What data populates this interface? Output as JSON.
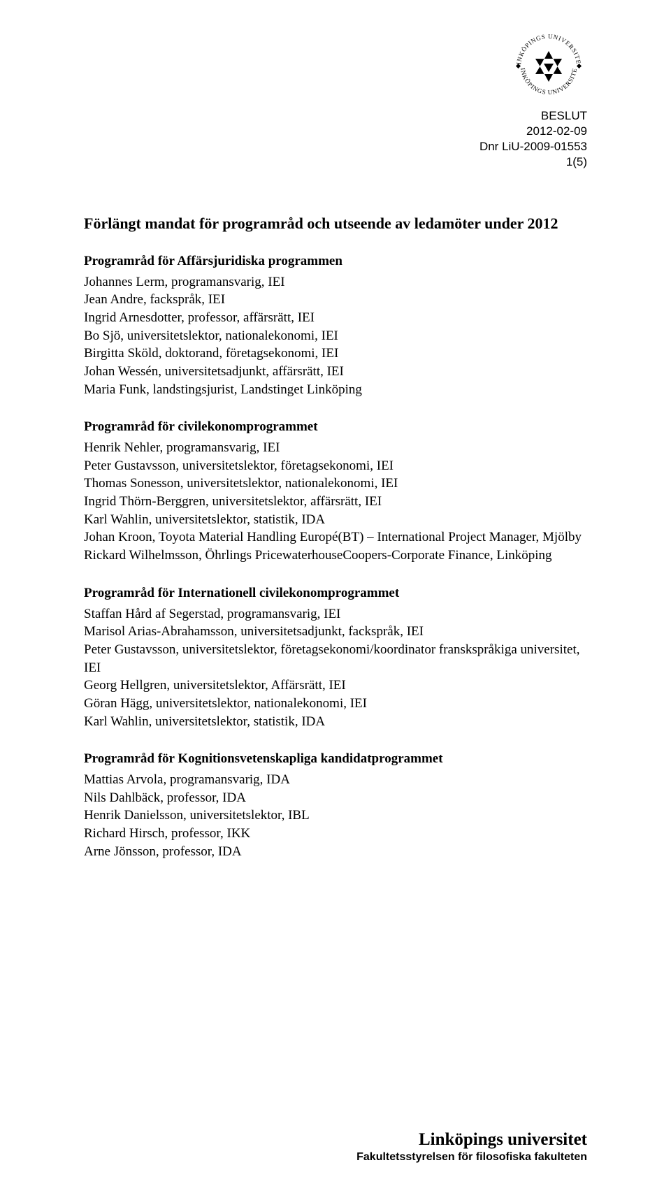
{
  "header": {
    "line1": "BESLUT",
    "line2": "2012-02-09",
    "line3": "Dnr LiU-2009-01553",
    "line4": "1(5)"
  },
  "doc_title": "Förlängt mandat för programråd och utseende av ledamöter under 2012",
  "sections": [
    {
      "title": "Programråd för Affärsjuridiska programmen",
      "members": [
        "Johannes Lerm, programansvarig, IEI",
        "Jean Andre, fackspråk, IEI",
        "Ingrid Arnesdotter, professor, affärsrätt, IEI",
        "Bo Sjö, universitetslektor, nationalekonomi, IEI",
        "Birgitta Sköld, doktorand, företagsekonomi, IEI",
        "Johan Wessén, universitetsadjunkt, affärsrätt, IEI",
        "Maria Funk, landstingsjurist, Landstinget Linköping"
      ]
    },
    {
      "title": "Programråd för civilekonomprogrammet",
      "members": [
        "Henrik Nehler, programansvarig, IEI",
        "Peter Gustavsson, universitetslektor, företagsekonomi, IEI",
        "Thomas Sonesson, universitetslektor, nationalekonomi, IEI",
        "Ingrid Thörn-Berggren, universitetslektor, affärsrätt, IEI",
        "Karl Wahlin, universitetslektor, statistik, IDA",
        "Johan Kroon, Toyota Material Handling Europé(BT) – International Project Manager, Mjölby",
        "Rickard Wilhelmsson, Öhrlings PricewaterhouseCoopers-Corporate Finance, Linköping"
      ]
    },
    {
      "title": "Programråd för Internationell civilekonomprogrammet",
      "members": [
        "Staffan Hård af Segerstad, programansvarig, IEI",
        "Marisol Arias-Abrahamsson, universitetsadjunkt, fackspråk, IEI",
        "Peter Gustavsson, universitetslektor, företagsekonomi/koordinator franskspråkiga universitet, IEI",
        "Georg Hellgren, universitetslektor, Affärsrätt, IEI",
        "Göran Hägg, universitetslektor, nationalekonomi, IEI",
        "Karl Wahlin, universitetslektor, statistik, IDA"
      ]
    },
    {
      "title": "Programråd för Kognitionsvetenskapliga kandidatprogrammet",
      "members": [
        "Mattias Arvola, programansvarig, IDA",
        "Nils Dahlbäck, professor, IDA",
        "Henrik Danielsson, universitetslektor, IBL",
        "Richard Hirsch, professor, IKK",
        "Arne Jönsson, professor, IDA"
      ]
    }
  ],
  "logo": {
    "text_top": "LINKÖPINGS UNIVERSITET",
    "text_bottom": "LINKÖPINGS UNIVERSITET",
    "color": "#000000"
  },
  "footer": {
    "university": "Linköpings universitet",
    "faculty": "Fakultetsstyrelsen för filosofiska fakulteten"
  },
  "colors": {
    "text": "#000000",
    "background": "#ffffff"
  }
}
